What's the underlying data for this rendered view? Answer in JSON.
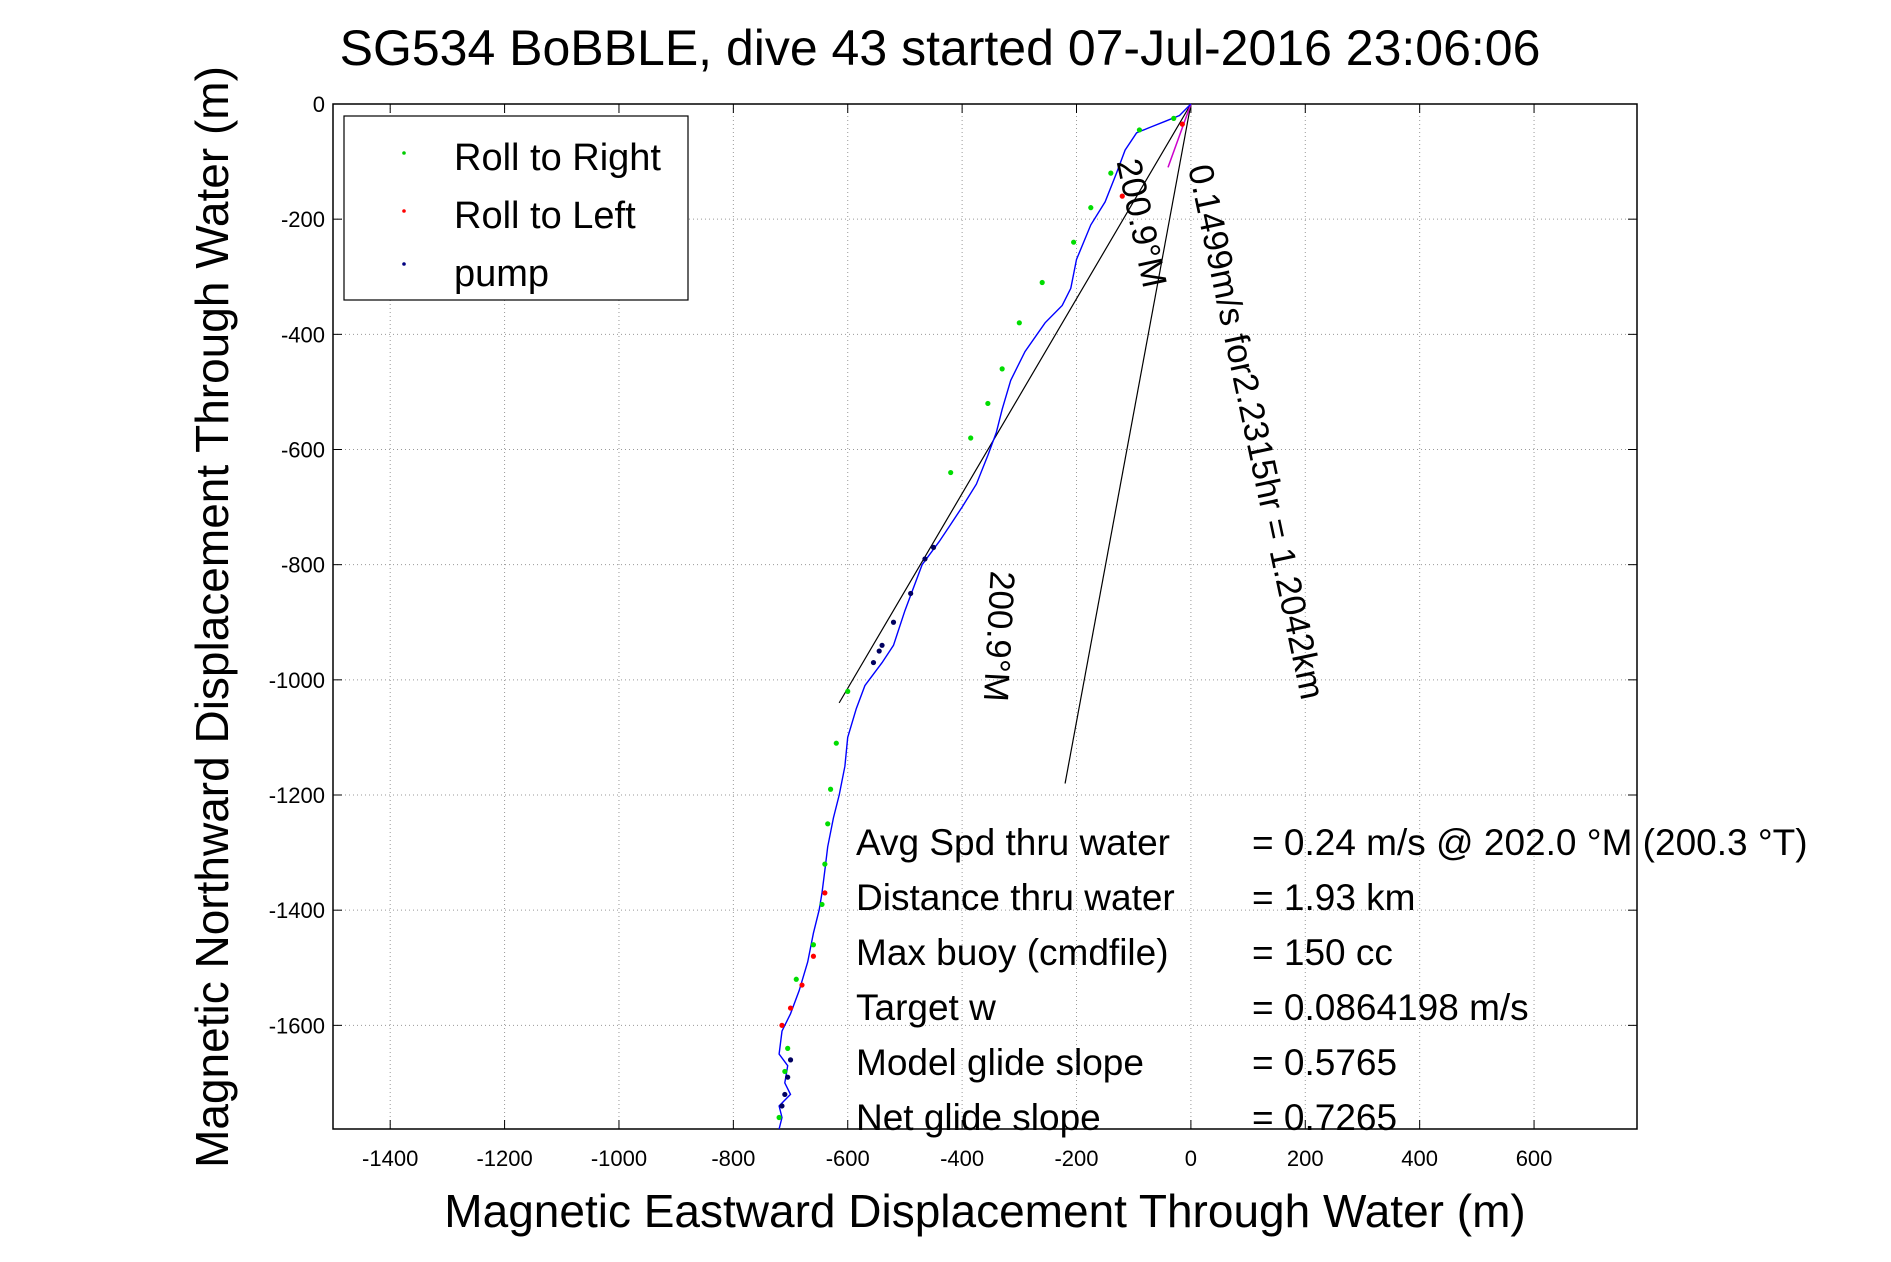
{
  "chart_data": {
    "type": "line",
    "title": "SG534 BoBBLE, dive 43 started 07-Jul-2016 23:06:06",
    "xlabel": "Magnetic Eastward Displacement Through Water (m)",
    "ylabel": "Magnetic Northward Displacement Through Water (m)",
    "xlim": [
      -1500,
      780
    ],
    "ylim": [
      -1780,
      0
    ],
    "xticks": [
      "-1400",
      "-1200",
      "-1000",
      "-800",
      "-600",
      "-400",
      "-200",
      "0",
      "200",
      "400",
      "600"
    ],
    "yticks": [
      "0",
      "-200",
      "-400",
      "-600",
      "-800",
      "-1000",
      "-1200",
      "-1400",
      "-1600"
    ],
    "grid": true,
    "legend_position": "top-left",
    "legend": [
      {
        "label": "Roll to Right",
        "color": "#00cc00"
      },
      {
        "label": "Roll to Left",
        "color": "#ff0000"
      },
      {
        "label": "pump",
        "color": "#000080"
      }
    ],
    "colors": {
      "track": "#0000ff",
      "right": "#00dd00",
      "left": "#ff0000",
      "pump": "#000060",
      "vector": "#000000",
      "vector2": "#cc00cc"
    },
    "track": {
      "x": [
        0,
        -20,
        -45,
        -70,
        -95,
        -115,
        -130,
        -150,
        -175,
        -200,
        -210,
        -225,
        -255,
        -290,
        -315,
        -330,
        -340,
        -355,
        -375,
        -400,
        -420,
        -440,
        -470,
        -500,
        -520,
        -540,
        -555,
        -570,
        -585,
        -600,
        -605,
        -615,
        -625,
        -635,
        -640,
        -645,
        -650,
        -660,
        -670,
        -685,
        -700,
        -715,
        -720,
        -705,
        -710,
        -700,
        -720,
        -715,
        -720
      ],
      "y": [
        0,
        -20,
        -30,
        -40,
        -50,
        -80,
        -120,
        -170,
        -210,
        -270,
        -320,
        -350,
        -380,
        -430,
        -480,
        -530,
        -570,
        -610,
        -660,
        -700,
        -730,
        -760,
        -800,
        -880,
        -940,
        -970,
        -990,
        -1010,
        -1050,
        -1100,
        -1150,
        -1200,
        -1240,
        -1290,
        -1330,
        -1370,
        -1400,
        -1440,
        -1490,
        -1540,
        -1580,
        -1610,
        -1650,
        -1670,
        -1700,
        -1720,
        -1740,
        -1760,
        -1780
      ]
    },
    "roll_right_x": [
      -30,
      -90,
      -140,
      -175,
      -205,
      -260,
      -300,
      -330,
      -355,
      -385,
      -420,
      -600,
      -620,
      -630,
      -635,
      -640,
      -645,
      -660,
      -690,
      -705,
      -710,
      -720
    ],
    "roll_right_y": [
      -25,
      -45,
      -120,
      -180,
      -240,
      -310,
      -380,
      -460,
      -520,
      -580,
      -640,
      -1020,
      -1110,
      -1190,
      -1250,
      -1320,
      -1390,
      -1460,
      -1520,
      -1640,
      -1680,
      -1760
    ],
    "roll_left_x": [
      -15,
      -120,
      -640,
      -660,
      -680,
      -700,
      -715
    ],
    "roll_left_y": [
      -35,
      -160,
      -1370,
      -1480,
      -1530,
      -1570,
      -1600
    ],
    "pump_x": [
      -450,
      -465,
      -490,
      -520,
      -540,
      -545,
      -555,
      -700,
      -705,
      -710,
      -715
    ],
    "pump_y": [
      -770,
      -790,
      -850,
      -900,
      -940,
      -950,
      -970,
      -1660,
      -1690,
      -1720,
      -1740
    ],
    "guide_lines": [
      {
        "x": [
          0,
          -615
        ],
        "y": [
          0,
          -1040
        ]
      },
      {
        "x": [
          0,
          -220
        ],
        "y": [
          0,
          -1180
        ]
      }
    ],
    "mean_vector": {
      "x": [
        0,
        -40
      ],
      "y": [
        0,
        -110
      ]
    },
    "rotated_labels": [
      {
        "text": "0.1499m/s for2.2315hr = 1.2042km",
        "anchor_x": -5,
        "anchor_y": -110,
        "angle": 78
      },
      {
        "text": "200.9°M",
        "anchor_x": -130,
        "anchor_y": -100,
        "angle": 78
      },
      {
        "text": "200.9°M",
        "anchor_x": -350,
        "anchor_y": -810,
        "angle": 93
      }
    ],
    "annotations": [
      {
        "label": "Avg Spd thru water",
        "value": "=  0.24 m/s @ 202.0 °M (200.3 °T)"
      },
      {
        "label": "Distance thru water",
        "value": "=  1.93 km"
      },
      {
        "label": "Max buoy (cmdfile)",
        "value": "= 150 cc"
      },
      {
        "label": "Target w",
        "value": "= 0.0864198 m/s"
      },
      {
        "label": "Model glide slope",
        "value": "= 0.5765"
      },
      {
        "label": "Net glide slope",
        "value": "= 0.7265"
      }
    ]
  }
}
